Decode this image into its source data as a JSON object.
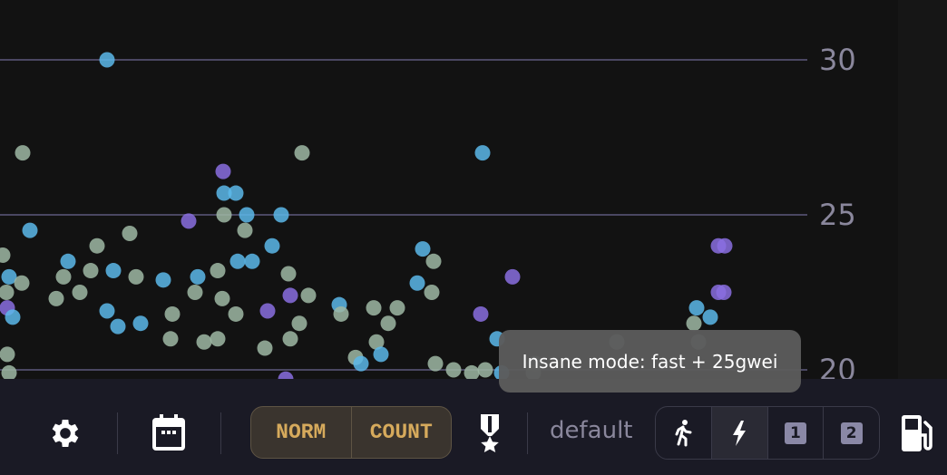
{
  "chart_data": {
    "type": "scatter",
    "title": "",
    "xlabel": "",
    "ylabel": "",
    "ylim": [
      19.7,
      31.0
    ],
    "y_ticks": [
      "30",
      "25",
      "20"
    ],
    "y_tick_values": [
      30,
      25,
      20
    ],
    "grid": true,
    "colors": {
      "green": "#9fb8a4",
      "blue": "#5cb9ea",
      "purple": "#8a6fe0"
    },
    "points": [
      [
        11.8,
        30.0,
        "blue"
      ],
      [
        2.5,
        27.0,
        "green"
      ],
      [
        33.3,
        27.0,
        "green"
      ],
      [
        53.2,
        27.0,
        "blue"
      ],
      [
        24.6,
        26.4,
        "purple"
      ],
      [
        24.7,
        25.7,
        "blue"
      ],
      [
        26.0,
        25.7,
        "blue"
      ],
      [
        20.8,
        24.8,
        "purple"
      ],
      [
        3.3,
        24.5,
        "blue"
      ],
      [
        14.3,
        24.4,
        "green"
      ],
      [
        27.2,
        25.0,
        "blue"
      ],
      [
        31.0,
        25.0,
        "blue"
      ],
      [
        24.7,
        25.0,
        "green"
      ],
      [
        27.0,
        24.5,
        "green"
      ],
      [
        30.0,
        24.0,
        "blue"
      ],
      [
        10.7,
        24.0,
        "green"
      ],
      [
        46.6,
        23.9,
        "blue"
      ],
      [
        47.8,
        23.5,
        "green"
      ],
      [
        7.5,
        23.5,
        "blue"
      ],
      [
        0.3,
        23.7,
        "green"
      ],
      [
        56.5,
        23.0,
        "purple"
      ],
      [
        1.0,
        23.0,
        "blue"
      ],
      [
        2.4,
        22.8,
        "green"
      ],
      [
        7.0,
        23.0,
        "green"
      ],
      [
        10.0,
        23.2,
        "green"
      ],
      [
        12.5,
        23.2,
        "blue"
      ],
      [
        15.0,
        23.0,
        "green"
      ],
      [
        18.0,
        22.9,
        "blue"
      ],
      [
        21.8,
        23.0,
        "blue"
      ],
      [
        24.0,
        23.2,
        "green"
      ],
      [
        26.2,
        23.5,
        "blue"
      ],
      [
        27.8,
        23.5,
        "blue"
      ],
      [
        31.8,
        23.1,
        "green"
      ],
      [
        46.0,
        22.8,
        "blue"
      ],
      [
        47.6,
        22.5,
        "green"
      ],
      [
        32.0,
        22.4,
        "purple"
      ],
      [
        34.0,
        22.4,
        "green"
      ],
      [
        0.7,
        22.5,
        "green"
      ],
      [
        0.8,
        22.0,
        "purple"
      ],
      [
        1.4,
        21.7,
        "blue"
      ],
      [
        6.2,
        22.3,
        "green"
      ],
      [
        8.8,
        22.5,
        "green"
      ],
      [
        11.8,
        21.9,
        "blue"
      ],
      [
        13.0,
        21.4,
        "blue"
      ],
      [
        15.5,
        21.5,
        "blue"
      ],
      [
        19.0,
        21.8,
        "green"
      ],
      [
        21.5,
        22.5,
        "green"
      ],
      [
        24.5,
        22.3,
        "green"
      ],
      [
        26.0,
        21.8,
        "green"
      ],
      [
        29.5,
        21.9,
        "purple"
      ],
      [
        33.0,
        21.5,
        "green"
      ],
      [
        37.4,
        22.1,
        "blue"
      ],
      [
        37.6,
        21.8,
        "green"
      ],
      [
        41.2,
        22.0,
        "green"
      ],
      [
        43.8,
        22.0,
        "green"
      ],
      [
        42.8,
        21.5,
        "green"
      ],
      [
        53.0,
        21.8,
        "purple"
      ],
      [
        54.8,
        21.0,
        "blue"
      ],
      [
        18.8,
        21.0,
        "green"
      ],
      [
        22.5,
        20.9,
        "green"
      ],
      [
        24.0,
        21.0,
        "green"
      ],
      [
        29.2,
        20.7,
        "green"
      ],
      [
        32.0,
        21.0,
        "green"
      ],
      [
        41.5,
        20.9,
        "green"
      ],
      [
        42.0,
        20.5,
        "blue"
      ],
      [
        39.2,
        20.4,
        "green"
      ],
      [
        39.8,
        20.2,
        "blue"
      ],
      [
        0.8,
        20.5,
        "green"
      ],
      [
        1.0,
        19.9,
        "green"
      ],
      [
        48.0,
        20.2,
        "green"
      ],
      [
        50.0,
        20.0,
        "green"
      ],
      [
        52.0,
        19.9,
        "green"
      ],
      [
        53.5,
        20.0,
        "green"
      ],
      [
        55.3,
        19.9,
        "blue"
      ],
      [
        59.0,
        20.2,
        "green"
      ],
      [
        58.8,
        19.9,
        "green"
      ],
      [
        68.0,
        20.9,
        "green"
      ],
      [
        76.8,
        22.0,
        "blue"
      ],
      [
        78.3,
        21.7,
        "blue"
      ],
      [
        76.5,
        21.5,
        "green"
      ],
      [
        77.0,
        20.9,
        "green"
      ],
      [
        79.2,
        24.0,
        "purple"
      ],
      [
        79.9,
        24.0,
        "purple"
      ],
      [
        79.2,
        22.5,
        "purple"
      ],
      [
        79.8,
        22.5,
        "purple"
      ],
      [
        31.5,
        19.7,
        "purple"
      ]
    ]
  },
  "tooltip": {
    "text": "Insane mode: fast + 25gwei"
  },
  "toolbar": {
    "settings_icon": "gear-icon",
    "calendar_icon": "calendar-icon",
    "norm_label": "NORM",
    "count_label": "COUNT",
    "medal_icon": "medal-icon",
    "preset_label": "default",
    "speed_options": [
      {
        "icon": "running-icon"
      },
      {
        "icon": "lightning-icon",
        "active": true
      },
      {
        "label": "1"
      },
      {
        "label": "2"
      }
    ],
    "gas_icon": "gas-pump-icon",
    "accent": "#d6aa5c"
  }
}
